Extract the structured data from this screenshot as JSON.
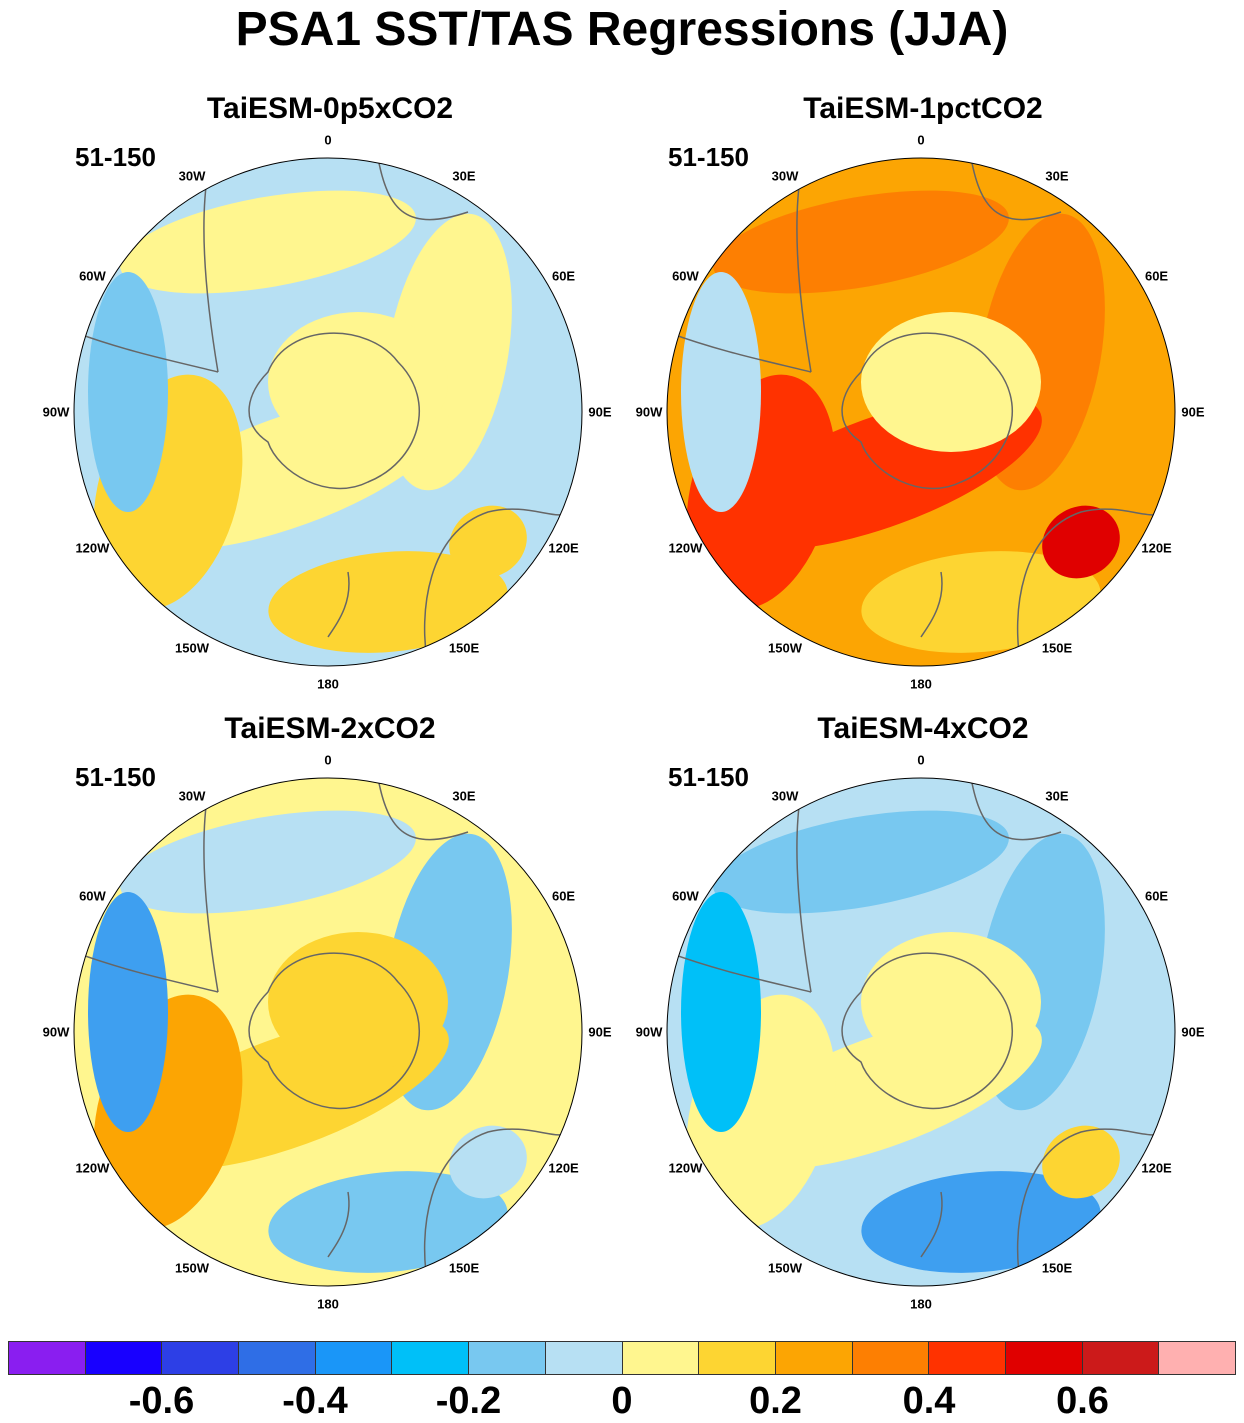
{
  "title": "PSA1 SST/TAS Regressions (JJA)",
  "panels": [
    {
      "title": "TaiESM-0p5xCO2",
      "period": "51-150",
      "background": "#b7e0f3",
      "blobs": [
        {
          "color": "#fff68f"
        },
        {
          "color": "#fff68f"
        },
        {
          "color": "#fff68f"
        },
        {
          "color": "#fdd532"
        },
        {
          "color": "#fdd532"
        },
        {
          "color": "#78c8f0"
        },
        {
          "color": "#fff68f"
        },
        {
          "color": "#fdd532"
        }
      ]
    },
    {
      "title": "TaiESM-1pctCO2",
      "period": "51-150",
      "background": "#fca503",
      "blobs": [
        {
          "color": "#fd7f02"
        },
        {
          "color": "#fd7f02"
        },
        {
          "color": "#ff3200"
        },
        {
          "color": "#ff3200"
        },
        {
          "color": "#fdd532"
        },
        {
          "color": "#b7e0f3"
        },
        {
          "color": "#fff68f"
        },
        {
          "color": "#e00000"
        }
      ]
    },
    {
      "title": "TaiESM-2xCO2",
      "period": "51-150",
      "background": "#fff68f",
      "blobs": [
        {
          "color": "#b7e0f3"
        },
        {
          "color": "#78c8f0"
        },
        {
          "color": "#fdd532"
        },
        {
          "color": "#fca503"
        },
        {
          "color": "#78c8f0"
        },
        {
          "color": "#3e9ff0"
        },
        {
          "color": "#fdd532"
        },
        {
          "color": "#b7e0f3"
        }
      ]
    },
    {
      "title": "TaiESM-4xCO2",
      "period": "51-150",
      "background": "#b7e0f3",
      "blobs": [
        {
          "color": "#78c8f0"
        },
        {
          "color": "#78c8f0"
        },
        {
          "color": "#fff68f"
        },
        {
          "color": "#fff68f"
        },
        {
          "color": "#3e9ff0"
        },
        {
          "color": "#00c0f8"
        },
        {
          "color": "#fff68f"
        },
        {
          "color": "#fdd532"
        }
      ]
    }
  ],
  "longitude_labels": [
    "0",
    "30E",
    "60E",
    "90E",
    "120E",
    "150E",
    "180",
    "150W",
    "120W",
    "90W",
    "60W",
    "30W"
  ],
  "colorbar": {
    "colors": [
      "#8a1ef0",
      "#1800ff",
      "#2d3fe6",
      "#2f6ee6",
      "#1a96f8",
      "#00c0f8",
      "#78c8f0",
      "#b7e0f3",
      "#fff68f",
      "#fdd532",
      "#fca503",
      "#fd7f02",
      "#ff3200",
      "#e00000",
      "#cc1a1a",
      "#ffb0b0"
    ],
    "labels": [
      "-0.6",
      "-0.4",
      "-0.2",
      "0",
      "0.2",
      "0.4",
      "0.6"
    ],
    "label_values": [
      -0.6,
      -0.4,
      -0.2,
      0,
      0.2,
      0.4,
      0.6
    ],
    "min": -0.8,
    "max": 0.8
  }
}
